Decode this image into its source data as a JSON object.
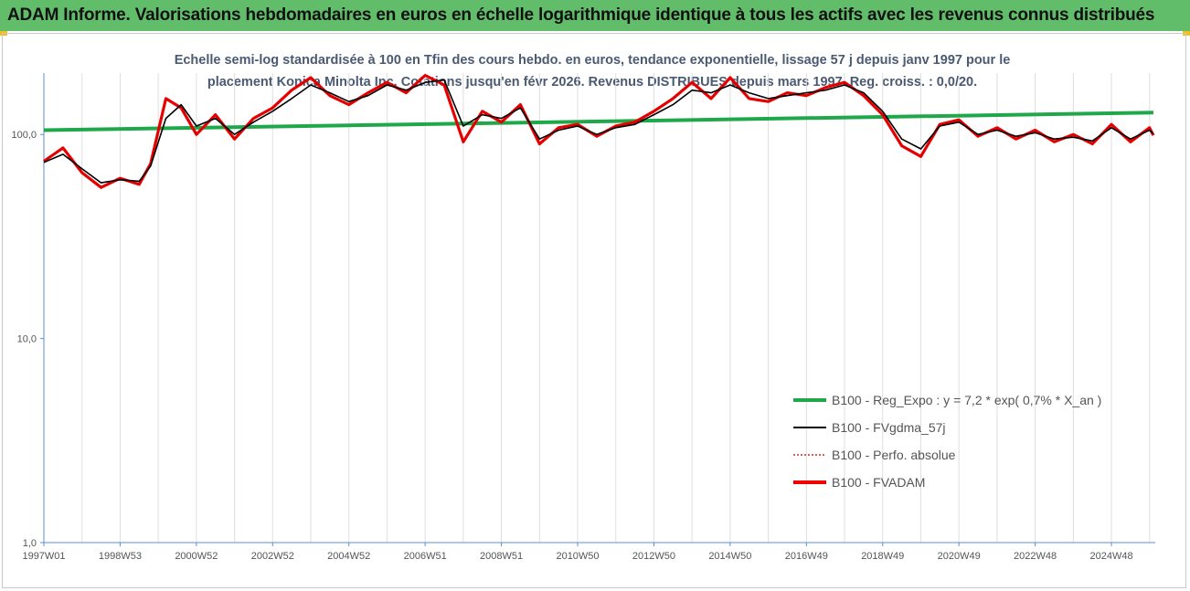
{
  "header": {
    "title": "ADAM Informe. Valorisations hebdomadaires en euros en échelle logarithmique identique à tous les actifs avec les revenus connus distribués"
  },
  "colors": {
    "header_bg": "#62bd6a",
    "accent_corner": "#f2c01a",
    "subtitle": "#4a5a72",
    "reg_expo": "#1fa84a",
    "fvgdma": "#000000",
    "perfo": "#c00000",
    "fvadam": "#ee0000",
    "grid": "#dedede",
    "axis": "#5b8ed6"
  },
  "chart_data": {
    "type": "line",
    "title": "",
    "subtitle_lines": [
      "Echelle semi-log standardisée à 100 en Tfin des cours hebdo. en euros, tendance exponentielle, lissage 57 j depuis janv 1997 pour le",
      "placement Konica Minolta Inc. Cotations jusqu'en févr 2026. Revenus DISTRIBUES depuis mars 1997. Reg. croiss. : 0,0/20."
    ],
    "xlabel": "",
    "ylabel": "",
    "y_scale": "log",
    "ylim": [
      1,
      200
    ],
    "y_ticks": [
      {
        "value": 1,
        "label": "1,0"
      },
      {
        "value": 10,
        "label": "10,0"
      },
      {
        "value": 100,
        "label": "100,0"
      }
    ],
    "x_range": [
      1997.0,
      2026.15
    ],
    "x_ticks": [
      {
        "value": 1997.0,
        "label": "1997W01"
      },
      {
        "value": 1999.0,
        "label": "1998W53"
      },
      {
        "value": 2001.0,
        "label": "2000W52"
      },
      {
        "value": 2003.0,
        "label": "2002W52"
      },
      {
        "value": 2005.0,
        "label": "2004W52"
      },
      {
        "value": 2007.0,
        "label": "2006W51"
      },
      {
        "value": 2009.0,
        "label": "2008W51"
      },
      {
        "value": 2011.0,
        "label": "2010W50"
      },
      {
        "value": 2013.0,
        "label": "2012W50"
      },
      {
        "value": 2015.0,
        "label": "2014W50"
      },
      {
        "value": 2017.0,
        "label": "2016W49"
      },
      {
        "value": 2019.0,
        "label": "2018W49"
      },
      {
        "value": 2021.0,
        "label": "2020W49"
      },
      {
        "value": 2023.0,
        "label": "2022W48"
      },
      {
        "value": 2025.0,
        "label": "2024W48"
      }
    ],
    "grid": "vertical",
    "legend_position": "lower-right",
    "series": [
      {
        "name": "B100 - Reg_Expo : y = 7,2 * exp( 0,7% * X_an )",
        "color": "#1fa84a",
        "style": "solid",
        "x": [
          1997.0,
          2026.1
        ],
        "y": [
          105,
          128
        ]
      },
      {
        "name": "B100 - FVgdma_57j",
        "color": "#000000",
        "style": "solid",
        "x": [
          1997.0,
          1997.5,
          1998.0,
          1998.5,
          1999.0,
          1999.5,
          1999.8,
          2000.2,
          2000.6,
          2001.0,
          2001.5,
          2002.0,
          2002.5,
          2003.0,
          2003.5,
          2004.0,
          2004.5,
          2005.0,
          2005.5,
          2006.0,
          2006.5,
          2007.0,
          2007.5,
          2008.0,
          2008.5,
          2009.0,
          2009.5,
          2010.0,
          2010.5,
          2011.0,
          2011.5,
          2012.0,
          2012.5,
          2013.0,
          2013.5,
          2014.0,
          2014.5,
          2015.0,
          2015.5,
          2016.0,
          2016.5,
          2017.0,
          2017.5,
          2018.0,
          2018.5,
          2019.0,
          2019.5,
          2020.0,
          2020.5,
          2021.0,
          2021.5,
          2022.0,
          2022.5,
          2023.0,
          2023.5,
          2024.0,
          2024.5,
          2025.0,
          2025.5,
          2026.0,
          2026.1
        ],
        "y": [
          73,
          80,
          68,
          58,
          60,
          59,
          70,
          120,
          140,
          110,
          120,
          100,
          115,
          130,
          150,
          175,
          160,
          145,
          155,
          175,
          165,
          180,
          185,
          110,
          125,
          120,
          135,
          95,
          105,
          110,
          100,
          108,
          112,
          125,
          140,
          165,
          160,
          175,
          160,
          150,
          155,
          160,
          165,
          175,
          160,
          130,
          95,
          85,
          110,
          115,
          100,
          105,
          98,
          102,
          95,
          97,
          93,
          108,
          95,
          105,
          101
        ]
      },
      {
        "name": "B100 - Perfo. absolue",
        "color": "#c00000",
        "style": "dotted",
        "x": [
          1997.0,
          1997.5,
          1998.0,
          1998.5,
          1999.0,
          1999.5,
          1999.8,
          2000.2,
          2000.6,
          2001.0,
          2001.5,
          2002.0,
          2002.5,
          2003.0,
          2003.5,
          2004.0,
          2004.5,
          2005.0,
          2005.5,
          2006.0,
          2006.5,
          2007.0,
          2007.5,
          2008.0,
          2008.5,
          2009.0,
          2009.5,
          2010.0,
          2010.5,
          2011.0,
          2011.5,
          2012.0,
          2012.5,
          2013.0,
          2013.5,
          2014.0,
          2014.5,
          2015.0,
          2015.5,
          2016.0,
          2016.5,
          2017.0,
          2017.5,
          2018.0,
          2018.5,
          2019.0,
          2019.5,
          2020.0,
          2020.5,
          2021.0,
          2021.5,
          2022.0,
          2022.5,
          2023.0,
          2023.5,
          2024.0,
          2024.5,
          2025.0,
          2025.5,
          2026.0,
          2026.1
        ],
        "y": [
          74,
          86,
          65,
          55,
          61,
          57,
          72,
          150,
          135,
          100,
          125,
          95,
          120,
          135,
          165,
          190,
          155,
          140,
          160,
          180,
          160,
          195,
          175,
          92,
          130,
          115,
          140,
          90,
          108,
          112,
          98,
          110,
          115,
          130,
          150,
          180,
          150,
          190,
          150,
          145,
          160,
          155,
          170,
          180,
          155,
          125,
          88,
          78,
          112,
          118,
          98,
          108,
          95,
          105,
          92,
          100,
          90,
          112,
          92,
          108,
          99
        ]
      },
      {
        "name": "B100 - FVADAM",
        "color": "#ee0000",
        "style": "solid",
        "x": [
          1997.0,
          1997.5,
          1998.0,
          1998.5,
          1999.0,
          1999.5,
          1999.8,
          2000.2,
          2000.6,
          2001.0,
          2001.5,
          2002.0,
          2002.5,
          2003.0,
          2003.5,
          2004.0,
          2004.5,
          2005.0,
          2005.5,
          2006.0,
          2006.5,
          2007.0,
          2007.5,
          2008.0,
          2008.5,
          2009.0,
          2009.5,
          2010.0,
          2010.5,
          2011.0,
          2011.5,
          2012.0,
          2012.5,
          2013.0,
          2013.5,
          2014.0,
          2014.5,
          2015.0,
          2015.5,
          2016.0,
          2016.5,
          2017.0,
          2017.5,
          2018.0,
          2018.5,
          2019.0,
          2019.5,
          2020.0,
          2020.5,
          2021.0,
          2021.5,
          2022.0,
          2022.5,
          2023.0,
          2023.5,
          2024.0,
          2024.5,
          2025.0,
          2025.5,
          2026.0,
          2026.1
        ],
        "y": [
          74,
          86,
          65,
          55,
          61,
          57,
          72,
          150,
          135,
          100,
          125,
          95,
          120,
          135,
          165,
          190,
          155,
          140,
          160,
          180,
          160,
          195,
          175,
          92,
          130,
          115,
          140,
          90,
          108,
          112,
          98,
          110,
          115,
          130,
          150,
          180,
          150,
          190,
          150,
          145,
          160,
          155,
          170,
          180,
          155,
          125,
          88,
          78,
          112,
          118,
          98,
          108,
          95,
          105,
          92,
          100,
          90,
          112,
          92,
          108,
          99
        ]
      }
    ]
  }
}
